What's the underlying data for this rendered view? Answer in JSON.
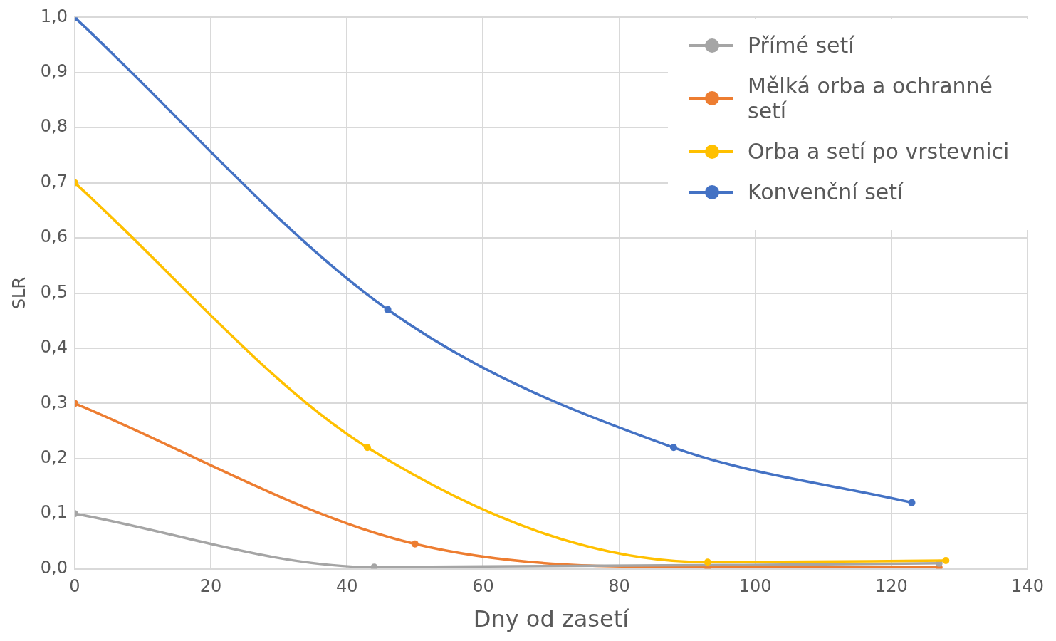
{
  "chart_data": {
    "type": "line",
    "xlabel": "Dny od zasetí",
    "ylabel": "SLR",
    "xlim": [
      0,
      140
    ],
    "xticks": [
      0,
      20,
      40,
      60,
      80,
      100,
      120,
      140
    ],
    "ylim": [
      0,
      1
    ],
    "yticks": [
      {
        "value": 0,
        "label": "0,0"
      },
      {
        "value": 0.1,
        "label": "0,1"
      },
      {
        "value": 0.2,
        "label": "0,2"
      },
      {
        "value": 0.3,
        "label": "0,3"
      },
      {
        "value": 0.4,
        "label": "0,4"
      },
      {
        "value": 0.5,
        "label": "0,5"
      },
      {
        "value": 0.6,
        "label": "0,6"
      },
      {
        "value": 0.7,
        "label": "0,7"
      },
      {
        "value": 0.8,
        "label": "0,8"
      },
      {
        "value": 0.9,
        "label": "0,9"
      },
      {
        "value": 1,
        "label": "1,0"
      }
    ],
    "grid": true,
    "legend": "top right",
    "marker": "circle",
    "line_style": "solid",
    "series": [
      {
        "name": "Přímé setí",
        "color": "#a5a5a5",
        "x": [
          0,
          44,
          93,
          127
        ],
        "values": [
          0.1,
          0.003,
          null,
          0.01
        ]
      },
      {
        "name": "Mělká orba a ochranné setí",
        "color": "#ed7d31",
        "x": [
          0,
          50,
          93,
          127
        ],
        "values": [
          0.3,
          0.045,
          0.003,
          0.003
        ]
      },
      {
        "name": "Orba a setí po vrstevnici",
        "color": "#ffc000",
        "x": [
          0,
          43,
          93,
          128
        ],
        "values": [
          0.7,
          0.22,
          0.012,
          0.015
        ]
      },
      {
        "name": "Konvenční setí",
        "color": "#4472c4",
        "x": [
          0,
          46,
          88,
          123
        ],
        "values": [
          1,
          0.47,
          0.22,
          0.12
        ]
      }
    ]
  }
}
